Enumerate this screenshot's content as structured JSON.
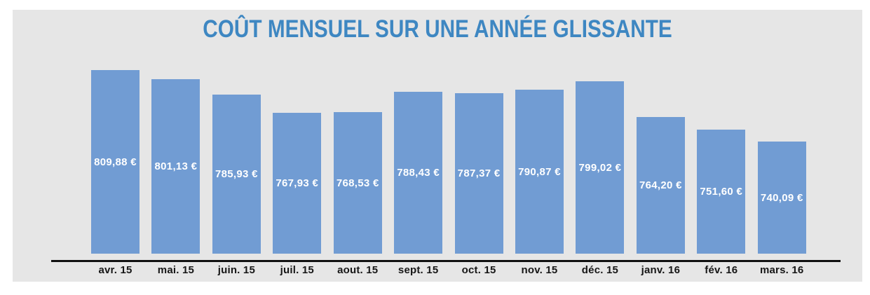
{
  "chart_data": {
    "type": "bar",
    "title": "COÛT MENSUEL SUR UNE ANNÉE GLISSANTE",
    "categories": [
      "avr. 15",
      "mai. 15",
      "juin. 15",
      "juil. 15",
      "aout. 15",
      "sept. 15",
      "oct. 15",
      "nov. 15",
      "déc. 15",
      "janv. 16",
      "fév. 16",
      "mars. 16"
    ],
    "values": [
      809.88,
      801.13,
      785.93,
      767.93,
      768.53,
      788.43,
      787.37,
      790.87,
      799.02,
      764.2,
      751.6,
      740.09
    ],
    "value_labels": [
      "809,88 €",
      "801,13 €",
      "785,93 €",
      "767,93 €",
      "768,53 €",
      "788,43 €",
      "787,37 €",
      "790,87 €",
      "799,02 €",
      "764,20 €",
      "751,60 €",
      "740,09 €"
    ],
    "currency": "€",
    "xlabel": "",
    "ylabel": "",
    "ylim": [
      630,
      815
    ],
    "grid": false,
    "legend": "none",
    "value_label_position": "center-inside",
    "colors": {
      "bar": "#719cd3",
      "title": "#3e87c2",
      "panel_background": "#e6e6e6",
      "page_background": "#ffffff",
      "axis_line": "#111111",
      "tick_label": "#161616",
      "value_label": "#ffffff"
    }
  }
}
